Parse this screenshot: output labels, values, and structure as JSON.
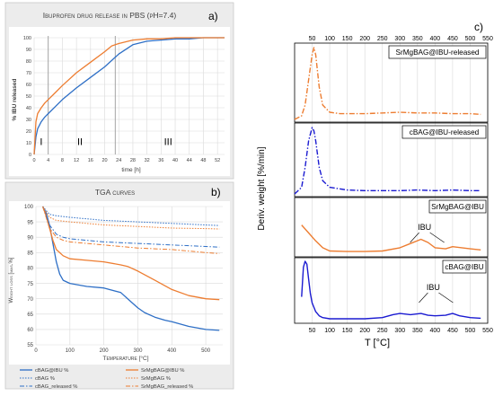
{
  "chart_data": [
    {
      "type": "line",
      "panel_letter": "a)",
      "title": "Ibuprofen drug release in PBS (pH=7.4)",
      "xlabel": "time [h]",
      "ylabel": "% IBU released",
      "xlim": [
        0,
        54
      ],
      "ylim": [
        0,
        100
      ],
      "x_ticks": [
        "0",
        "4",
        "8",
        "12",
        "16",
        "20",
        "24",
        "28",
        "32",
        "36",
        "40",
        "44",
        "48",
        "52"
      ],
      "y_ticks": [
        "0",
        "10",
        "20",
        "30",
        "40",
        "50",
        "60",
        "70",
        "80",
        "90",
        "100"
      ],
      "grid": true,
      "stages": {
        "dividers_x": [
          4,
          23
        ],
        "labels": [
          "I",
          "II",
          "III"
        ],
        "label_x": [
          2,
          13,
          38
        ]
      },
      "series": [
        {
          "color": "#2e6fc6",
          "x": [
            0,
            0.5,
            1,
            2,
            3,
            4,
            6,
            8,
            12,
            16,
            20,
            24,
            28,
            32,
            36,
            40,
            44,
            48,
            52,
            54
          ],
          "y": [
            0,
            15,
            22,
            28,
            32,
            35,
            41,
            47,
            57,
            66,
            75,
            86,
            94,
            97,
            98,
            99,
            99,
            100,
            100,
            100
          ]
        },
        {
          "color": "#ed7d31",
          "x": [
            0,
            0.5,
            1,
            2,
            3,
            4,
            6,
            8,
            12,
            16,
            20,
            22,
            24,
            28,
            32,
            36,
            40,
            44,
            48,
            52,
            54
          ],
          "y": [
            0,
            28,
            35,
            40,
            44,
            47,
            53,
            59,
            70,
            79,
            88,
            93,
            95,
            98,
            99,
            99,
            100,
            100,
            100,
            100,
            100
          ]
        }
      ]
    },
    {
      "type": "line",
      "panel_letter": "b)",
      "title": "TGA curves",
      "xlabel": "Temperature [°C]",
      "ylabel": "Weight loss [mas.%]",
      "xlim": [
        0,
        550
      ],
      "ylim": [
        55,
        100
      ],
      "x_ticks": [
        "0",
        "100",
        "200",
        "300",
        "400",
        "500"
      ],
      "y_ticks": [
        "55",
        "60",
        "65",
        "70",
        "75",
        "80",
        "85",
        "90",
        "95",
        "100"
      ],
      "grid": true,
      "legend": [
        "cBAG@IBU %",
        "SrMgBAG@IBU %",
        "cBAG %",
        "SrMgBAG %",
        "cBAG_released %",
        "SrMgBAG_released %"
      ],
      "legend_placement": "bottom",
      "series": [
        {
          "name": "cBAG@IBU %",
          "color": "#2e6fc6",
          "dash": "",
          "width": 1.3,
          "x": [
            20,
            30,
            40,
            50,
            60,
            70,
            80,
            100,
            150,
            200,
            250,
            280,
            300,
            320,
            350,
            380,
            400,
            450,
            500,
            540
          ],
          "y": [
            100,
            98,
            94,
            88,
            82,
            78,
            76,
            75,
            74,
            73.5,
            72,
            69,
            67,
            65.5,
            64,
            63,
            62.5,
            61,
            60,
            59.7
          ]
        },
        {
          "name": "SrMgBAG@IBU %",
          "color": "#ed7d31",
          "dash": "",
          "width": 1.3,
          "x": [
            20,
            30,
            40,
            50,
            60,
            80,
            100,
            150,
            200,
            250,
            270,
            300,
            350,
            400,
            450,
            500,
            540
          ],
          "y": [
            100,
            97,
            93,
            89,
            86,
            84,
            83,
            82.5,
            82,
            81,
            80.5,
            79,
            76,
            73,
            71,
            70,
            69.7
          ]
        },
        {
          "name": "cBAG %",
          "color": "#2e6fc6",
          "dash": "1.5,1.5",
          "width": 1,
          "x": [
            20,
            40,
            60,
            100,
            200,
            300,
            400,
            500,
            540
          ],
          "y": [
            100,
            97.5,
            97,
            96.5,
            95.5,
            95,
            94.5,
            94,
            93.8
          ]
        },
        {
          "name": "SrMgBAG %",
          "color": "#ed7d31",
          "dash": "1.5,1.5",
          "width": 1,
          "x": [
            20,
            40,
            60,
            100,
            200,
            300,
            400,
            500,
            540
          ],
          "y": [
            100,
            96.5,
            95.5,
            95,
            94,
            93.5,
            93,
            92.8,
            92.7
          ]
        },
        {
          "name": "cBAG_released %",
          "color": "#2e6fc6",
          "dash": "5,2,1.5,2",
          "width": 1,
          "x": [
            20,
            40,
            60,
            80,
            100,
            200,
            300,
            400,
            500,
            540
          ],
          "y": [
            100,
            94,
            91,
            90,
            89.5,
            88.5,
            88,
            87.5,
            87,
            86.8
          ]
        },
        {
          "name": "SrMgBAG_released %",
          "color": "#ed7d31",
          "dash": "5,2,1.5,2",
          "width": 1,
          "x": [
            20,
            40,
            60,
            80,
            100,
            200,
            300,
            400,
            500,
            540
          ],
          "y": [
            100,
            93,
            90,
            89,
            88.5,
            87.5,
            86.5,
            86,
            85,
            84.7
          ]
        }
      ]
    },
    {
      "type": "line",
      "panel_letter": "c)",
      "xlabel": "T [°C]",
      "ylabel": "Deriv. weight [%/min]",
      "xlim": [
        0,
        550
      ],
      "x_ticks": [
        "50",
        "100",
        "150",
        "200",
        "250",
        "300",
        "350",
        "400",
        "450",
        "500",
        "550"
      ],
      "x_tick_values": [
        50,
        100,
        150,
        200,
        250,
        300,
        350,
        400,
        450,
        500,
        550
      ],
      "grid": true,
      "subplots": [
        {
          "label": "SrMgBAG@IBU-released",
          "color": "#ed7d31",
          "dash": "6,2,1.5,2",
          "x": [
            0,
            20,
            30,
            40,
            50,
            55,
            60,
            70,
            80,
            100,
            130,
            200,
            300,
            350,
            400,
            450,
            500,
            530
          ],
          "y": [
            0,
            0.05,
            0.2,
            0.55,
            0.9,
            1.0,
            0.9,
            0.45,
            0.2,
            0.1,
            0.08,
            0.08,
            0.1,
            0.09,
            0.09,
            0.08,
            0.08,
            0.07
          ]
        },
        {
          "label": "cBAG@IBU-released",
          "color": "#1b1bd1",
          "dash": "6,2,1.5,2",
          "x": [
            0,
            20,
            30,
            40,
            50,
            55,
            60,
            70,
            80,
            100,
            150,
            200,
            300,
            350,
            400,
            450,
            500,
            530
          ],
          "y": [
            0,
            0.1,
            0.4,
            0.8,
            1.0,
            0.95,
            0.8,
            0.4,
            0.2,
            0.1,
            0.06,
            0.05,
            0.05,
            0.06,
            0.05,
            0.06,
            0.05,
            0.05
          ]
        },
        {
          "label": "SrMgBAG@IBU",
          "color": "#ed7d31",
          "dash": "",
          "annotation": "IBU",
          "annotation_x": 370,
          "x": [
            20,
            40,
            60,
            80,
            100,
            150,
            200,
            250,
            300,
            330,
            360,
            380,
            400,
            430,
            450,
            500,
            530
          ],
          "y": [
            0.55,
            0.4,
            0.25,
            0.12,
            0.06,
            0.05,
            0.05,
            0.06,
            0.12,
            0.2,
            0.28,
            0.22,
            0.12,
            0.1,
            0.14,
            0.1,
            0.08
          ]
        },
        {
          "label": "cBAG@IBU",
          "color": "#1b1bd1",
          "dash": "",
          "annotation": "IBU",
          "annotation_x": 395,
          "x": [
            20,
            25,
            30,
            35,
            40,
            45,
            50,
            60,
            70,
            80,
            100,
            150,
            200,
            250,
            280,
            300,
            330,
            360,
            380,
            400,
            430,
            450,
            470,
            500,
            530
          ],
          "y": [
            0.4,
            0.9,
            1.0,
            0.95,
            0.7,
            0.45,
            0.3,
            0.15,
            0.08,
            0.05,
            0.03,
            0.03,
            0.03,
            0.05,
            0.1,
            0.12,
            0.1,
            0.12,
            0.09,
            0.08,
            0.09,
            0.12,
            0.08,
            0.05,
            0.04
          ]
        }
      ]
    }
  ]
}
